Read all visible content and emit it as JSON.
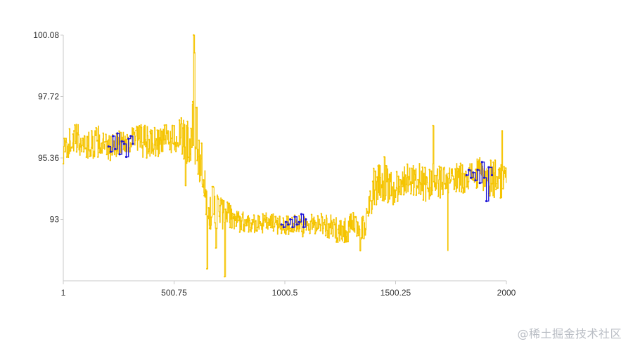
{
  "watermark": "@稀土掘金技术社区",
  "colors": {
    "base_series": "#f5c400",
    "highlight_series": "#1d14d6",
    "axis": "#c8c8c8",
    "tick_text": "#333333"
  },
  "chart_data": {
    "type": "line",
    "title": "",
    "xlabel": "",
    "ylabel": "",
    "xlim": [
      1,
      2000
    ],
    "ylim": [
      90.64,
      100.08
    ],
    "x_ticks": [
      1,
      500.75,
      1000.5,
      1500.25,
      2000
    ],
    "x_tick_labels": [
      "1",
      "500.75",
      "1000.5",
      "1500.25",
      "2000"
    ],
    "y_ticks": [
      93,
      95.36,
      97.72,
      100.08
    ],
    "y_tick_labels": [
      "93",
      "95.36",
      "97.72",
      "100.08"
    ],
    "grid": false,
    "legend": "none",
    "series_count_note": "",
    "series": [
      {
        "name": "",
        "role": "base",
        "x": [
          1,
          40,
          80,
          120,
          160,
          200,
          240,
          280,
          320,
          360,
          400,
          440,
          480,
          520,
          560,
          590,
          610,
          640,
          680,
          720,
          760,
          800,
          840,
          880,
          920,
          960,
          1000,
          1040,
          1080,
          1120,
          1160,
          1200,
          1240,
          1280,
          1320,
          1360,
          1400,
          1440,
          1480,
          1520,
          1560,
          1600,
          1640,
          1680,
          1720,
          1760,
          1800,
          1840,
          1880,
          1920,
          1960,
          2000
        ],
        "y": [
          95.6,
          96.1,
          96.0,
          95.8,
          96.0,
          95.7,
          95.9,
          96.0,
          96.1,
          96.0,
          95.9,
          96.0,
          96.1,
          96.2,
          96.0,
          96.4,
          95.7,
          93.8,
          93.4,
          93.2,
          93.1,
          92.9,
          92.9,
          92.8,
          92.9,
          92.8,
          92.8,
          92.8,
          92.7,
          92.8,
          92.9,
          92.7,
          92.6,
          92.6,
          92.8,
          92.6,
          94.3,
          94.5,
          94.1,
          94.4,
          94.6,
          94.5,
          94.3,
          94.6,
          94.3,
          94.6,
          94.6,
          94.7,
          94.7,
          94.6,
          94.6,
          94.4
        ],
        "amplitude": [
          0.5,
          0.6,
          0.7,
          0.6,
          0.6,
          0.5,
          0.5,
          0.5,
          0.6,
          0.7,
          0.6,
          0.6,
          0.6,
          0.7,
          0.9,
          1.4,
          1.4,
          1.0,
          0.9,
          0.7,
          0.5,
          0.4,
          0.4,
          0.4,
          0.4,
          0.4,
          0.4,
          0.4,
          0.4,
          0.4,
          0.4,
          0.5,
          0.5,
          0.6,
          0.5,
          0.5,
          0.8,
          0.8,
          0.7,
          0.6,
          0.6,
          0.7,
          0.7,
          0.6,
          0.7,
          0.6,
          0.6,
          0.6,
          0.7,
          0.7,
          0.8,
          0.8
        ]
      },
      {
        "name": "",
        "role": "highlight",
        "segments": [
          {
            "x": [
              205,
              215,
              225,
              235,
              245,
              255,
              265,
              275,
              285,
              295,
              305,
              315
            ],
            "y": [
              95.8,
              95.6,
              96.2,
              95.7,
              96.3,
              95.5,
              96.0,
              95.9,
              95.4,
              96.1,
              96.2,
              95.9
            ]
          },
          {
            "x": [
              985,
              995,
              1005,
              1015,
              1025,
              1035,
              1045,
              1055,
              1065,
              1075,
              1085,
              1095
            ],
            "y": [
              92.8,
              92.7,
              92.9,
              92.8,
              93.0,
              92.7,
              93.1,
              92.8,
              92.9,
              93.2,
              92.7,
              93.0
            ]
          },
          {
            "x": [
              1820,
              1830,
              1840,
              1850,
              1860,
              1870,
              1880,
              1890,
              1900,
              1910,
              1920,
              1935
            ],
            "y": [
              94.7,
              94.9,
              94.6,
              94.8,
              94.5,
              94.9,
              94.4,
              95.2,
              94.6,
              93.7,
              95.0,
              94.7
            ]
          }
        ]
      }
    ],
    "outliers": [
      {
        "x": 590,
        "y": 100.08
      },
      {
        "x": 592,
        "y": 99.4
      },
      {
        "x": 552,
        "y": 94.3
      },
      {
        "x": 650,
        "y": 91.1
      },
      {
        "x": 690,
        "y": 91.9
      },
      {
        "x": 730,
        "y": 90.8
      },
      {
        "x": 1340,
        "y": 91.8
      },
      {
        "x": 1450,
        "y": 95.4
      },
      {
        "x": 1670,
        "y": 96.6
      },
      {
        "x": 1735,
        "y": 91.8
      },
      {
        "x": 1980,
        "y": 96.4
      }
    ]
  }
}
